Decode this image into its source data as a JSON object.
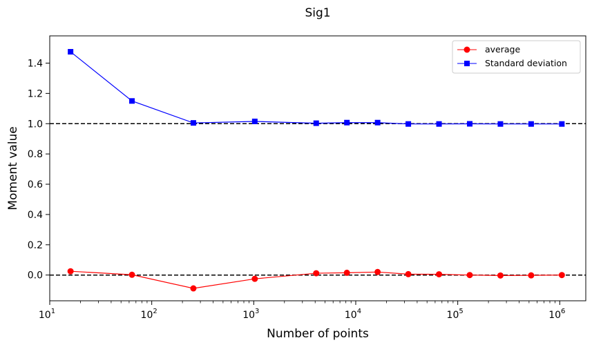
{
  "chart_data": {
    "type": "line",
    "title": "Sig1",
    "xlabel": "Number of points",
    "ylabel": "Moment value",
    "xscale": "log",
    "xlim": [
      10,
      1800000
    ],
    "ylim": [
      -0.17,
      1.58
    ],
    "x_ticks": [
      {
        "value": 10,
        "base": "10",
        "exp": "1"
      },
      {
        "value": 100,
        "base": "10",
        "exp": "2"
      },
      {
        "value": 1000,
        "base": "10",
        "exp": "3"
      },
      {
        "value": 10000,
        "base": "10",
        "exp": "4"
      },
      {
        "value": 100000,
        "base": "10",
        "exp": "5"
      },
      {
        "value": 1000000,
        "base": "10",
        "exp": "6"
      }
    ],
    "y_ticks": [
      {
        "value": 0.0,
        "label": "0.0"
      },
      {
        "value": 0.2,
        "label": "0.2"
      },
      {
        "value": 0.4,
        "label": "0.4"
      },
      {
        "value": 0.6,
        "label": "0.6"
      },
      {
        "value": 0.8,
        "label": "0.8"
      },
      {
        "value": 1.0,
        "label": "1.0"
      },
      {
        "value": 1.2,
        "label": "1.2"
      },
      {
        "value": 1.4,
        "label": "1.4"
      }
    ],
    "x": [
      16,
      64,
      256,
      1024,
      4096,
      8192,
      16384,
      32768,
      65536,
      131072,
      262144,
      524288,
      1048576
    ],
    "series": [
      {
        "name": "average",
        "color": "#ff0000",
        "marker": "circle",
        "values": [
          0.025,
          0.002,
          -0.088,
          -0.025,
          0.012,
          0.015,
          0.02,
          0.006,
          0.005,
          0.0,
          -0.003,
          -0.002,
          0.0
        ]
      },
      {
        "name": "Standard deviation",
        "color": "#0000ff",
        "marker": "square",
        "values": [
          1.475,
          1.15,
          1.005,
          1.015,
          1.003,
          1.007,
          1.007,
          0.998,
          0.998,
          0.999,
          0.998,
          0.998,
          0.998
        ]
      }
    ],
    "reference_lines": [
      {
        "y": 1.0,
        "style": "dashed",
        "color": "#000000"
      },
      {
        "y": 0.0,
        "style": "dashed",
        "color": "#000000"
      }
    ],
    "legend": {
      "position": "top-right"
    },
    "grid": false
  }
}
